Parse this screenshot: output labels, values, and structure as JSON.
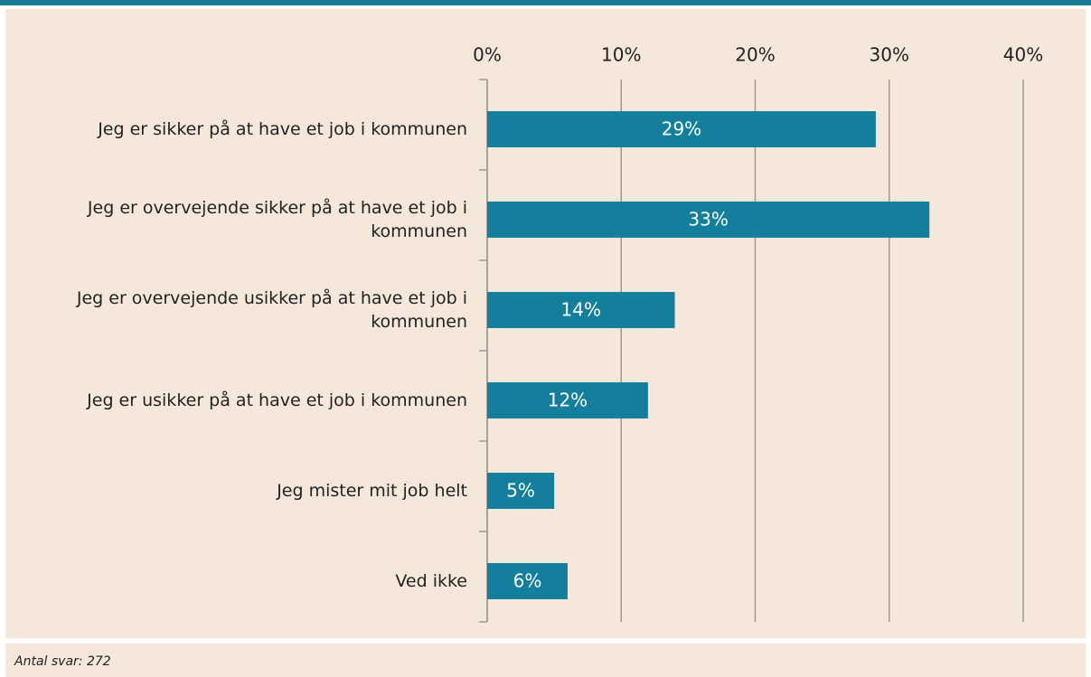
{
  "chart_data": {
    "type": "bar",
    "orientation": "horizontal",
    "categories": [
      "Jeg er sikker på at have et job i kommunen",
      "Jeg er overvejende sikker på at have et job i kommunen",
      "Jeg er overvejende usikker på at have et job i kommunen",
      "Jeg er usikker på at have et job i kommunen",
      "Jeg mister mit job helt",
      "Ved ikke"
    ],
    "values": [
      29,
      33,
      14,
      12,
      5,
      6
    ],
    "value_labels": [
      "29%",
      "33%",
      "14%",
      "12%",
      "5%",
      "6%"
    ],
    "color": "#137f9c",
    "xlim": [
      0,
      40
    ],
    "xticks": [
      {
        "value": 0,
        "label": "0%"
      },
      {
        "value": 10,
        "label": "10%"
      },
      {
        "value": 20,
        "label": "20%"
      },
      {
        "value": 30,
        "label": "30%"
      },
      {
        "value": 40,
        "label": "40%"
      }
    ],
    "grid": true,
    "note": "Antal svar: 272"
  }
}
